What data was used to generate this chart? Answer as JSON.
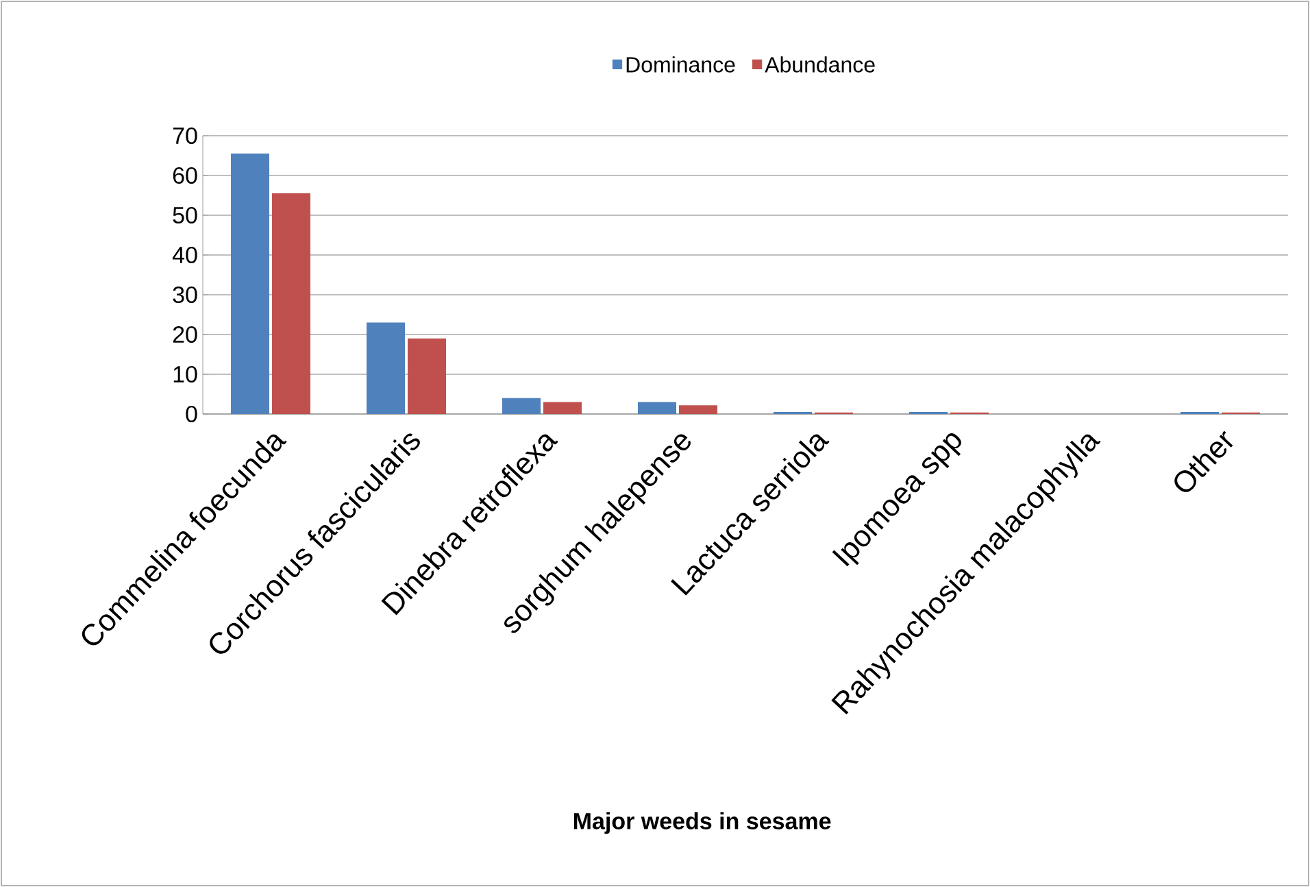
{
  "chart_data": {
    "type": "bar",
    "xlabel": "Major weeds in sesame",
    "categories": [
      "Commelina foecunda",
      "Corchorus fascicularis",
      "Dinebra retroflexa",
      "sorghum halepense",
      "Lactuca serriola",
      "Ipomoea spp",
      "Rahynochosia malacophylla",
      "Other"
    ],
    "series": [
      {
        "name": "Dominance",
        "color": "#4f81bd",
        "values": [
          65.5,
          23,
          4,
          3,
          0.5,
          0.5,
          0,
          0.5
        ]
      },
      {
        "name": "Abundance",
        "color": "#c0504d",
        "values": [
          55.5,
          19,
          3,
          2.2,
          0.4,
          0.4,
          0,
          0.4
        ]
      }
    ],
    "ylim": [
      0,
      70
    ],
    "yticks": [
      0,
      10,
      20,
      30,
      40,
      50,
      60,
      70
    ],
    "grid": "y",
    "legend": "top"
  }
}
